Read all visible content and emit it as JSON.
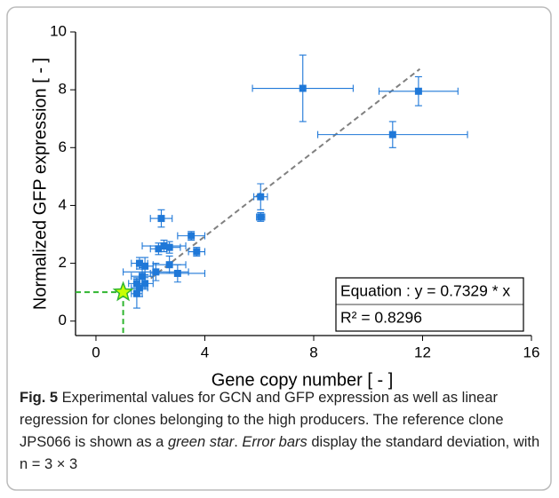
{
  "chart_data": {
    "type": "scatter",
    "x_label": "Gene copy number [ - ]",
    "y_label": "Normalized GFP expression [ - ]",
    "xlim": [
      -0.75,
      16
    ],
    "ylim": [
      -0.5,
      10
    ],
    "xticks": [
      0,
      4,
      8,
      12,
      16
    ],
    "yticks": [
      0,
      2,
      4,
      6,
      8,
      10
    ],
    "series": [
      {
        "color": "#1f78d8",
        "x": [
          7.6,
          11.85,
          10.9,
          6.05,
          6.05,
          2.4,
          3.5,
          3.7,
          2.5,
          2.7,
          2.3,
          2.7,
          2.2,
          3.0,
          1.6,
          1.8,
          1.7,
          1.5,
          1.8,
          1.6,
          1.5
        ],
        "y": [
          8.05,
          7.95,
          6.45,
          4.3,
          3.6,
          3.55,
          2.95,
          2.4,
          2.6,
          2.55,
          2.5,
          1.95,
          1.7,
          1.65,
          2.0,
          1.9,
          1.55,
          1.3,
          1.3,
          1.15,
          0.95
        ],
        "xerr": [
          1.85,
          1.45,
          2.75,
          0.25,
          0.15,
          0.4,
          0.5,
          0.3,
          0.8,
          0.4,
          0.3,
          0.6,
          1.2,
          1.0,
          0.3,
          0.3,
          0.4,
          0.3,
          0.3,
          0.3,
          0.2
        ],
        "yerr": [
          1.15,
          0.5,
          0.45,
          0.45,
          0.15,
          0.3,
          0.15,
          0.15,
          0.2,
          0.2,
          0.2,
          0.3,
          0.3,
          0.3,
          0.2,
          0.3,
          0.3,
          0.2,
          0.2,
          0.3,
          0.5
        ]
      }
    ],
    "fit": {
      "color": "#808080",
      "x": [
        1.5,
        11.9
      ],
      "y": [
        1.1,
        8.72
      ]
    },
    "reference": {
      "color": "#2fb52f",
      "fill": "#c8ff00",
      "x": [
        1.0
      ],
      "y": [
        1.0
      ]
    },
    "equation_box": {
      "rows": [
        "Equation : y = 0.7329 * x",
        "R² = 0.8296"
      ]
    }
  },
  "caption": {
    "label": "Fig. 5",
    "parts": [
      {
        "text": " Experimental values for GCN and GFP expression as well as linear regression for clones belonging to the high producers. The reference clone JPS066 is shown as a "
      },
      {
        "text": "green star",
        "italic": true
      },
      {
        "text": ". "
      },
      {
        "text": "Error bars",
        "italic": true
      },
      {
        "text": " display the standard deviation, with n = 3 × 3"
      }
    ]
  }
}
